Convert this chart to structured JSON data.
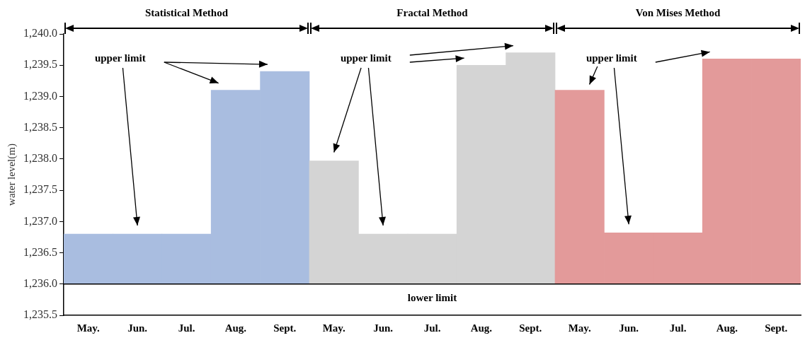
{
  "chart_data": {
    "type": "bar",
    "ylabel": "water level(m)",
    "categories": [
      "May.",
      "Jun.",
      "Jul.",
      "Aug.",
      "Sept.",
      "May.",
      "Jun.",
      "Jul.",
      "Aug.",
      "Sept.",
      "May.",
      "Jun.",
      "Jul.",
      "Aug.",
      "Sept."
    ],
    "base": [
      1236.0,
      1236.0,
      1236.0,
      1236.0,
      1236.0,
      1236.0,
      1236.0,
      1236.0,
      1236.0,
      1236.0,
      1236.0,
      1236.0,
      1236.0,
      1236.0,
      1236.0
    ],
    "values": [
      0.8,
      0.8,
      0.8,
      3.1,
      3.4,
      1.97,
      0.8,
      0.8,
      3.5,
      3.7,
      3.1,
      0.82,
      0.82,
      3.6,
      3.6
    ],
    "colors": [
      "#a9bde0",
      "#a9bde0",
      "#a9bde0",
      "#a9bde0",
      "#a9bde0",
      "#d4d4d4",
      "#d4d4d4",
      "#d4d4d4",
      "#d4d4d4",
      "#d4d4d4",
      "#e39a9a",
      "#e39a9a",
      "#e39a9a",
      "#e39a9a",
      "#e39a9a"
    ],
    "ylim": [
      1235.5,
      1240.0
    ],
    "yticks": [
      {
        "value": 1235.5,
        "label": "1,235.5"
      },
      {
        "value": 1236.0,
        "label": "1,236.0"
      },
      {
        "value": 1236.5,
        "label": "1,236.5"
      },
      {
        "value": 1237.0,
        "label": "1,237.0"
      },
      {
        "value": 1237.5,
        "label": "1,237.5"
      },
      {
        "value": 1238.0,
        "label": "1,238.0"
      },
      {
        "value": 1238.5,
        "label": "1,238.5"
      },
      {
        "value": 1239.0,
        "label": "1,239.0"
      },
      {
        "value": 1239.5,
        "label": "1,239.5"
      },
      {
        "value": 1240.0,
        "label": "1,240.0"
      }
    ],
    "ref_lines": [
      {
        "axis": "y",
        "value": 1236.0,
        "label": "lower limit",
        "color": "#000000"
      }
    ],
    "annotations": [
      "Statistical Method",
      "Fractal Method",
      "Von Mises Method",
      "upper limit",
      "upper limit",
      "upper limit"
    ],
    "grid": false,
    "legend": false
  }
}
